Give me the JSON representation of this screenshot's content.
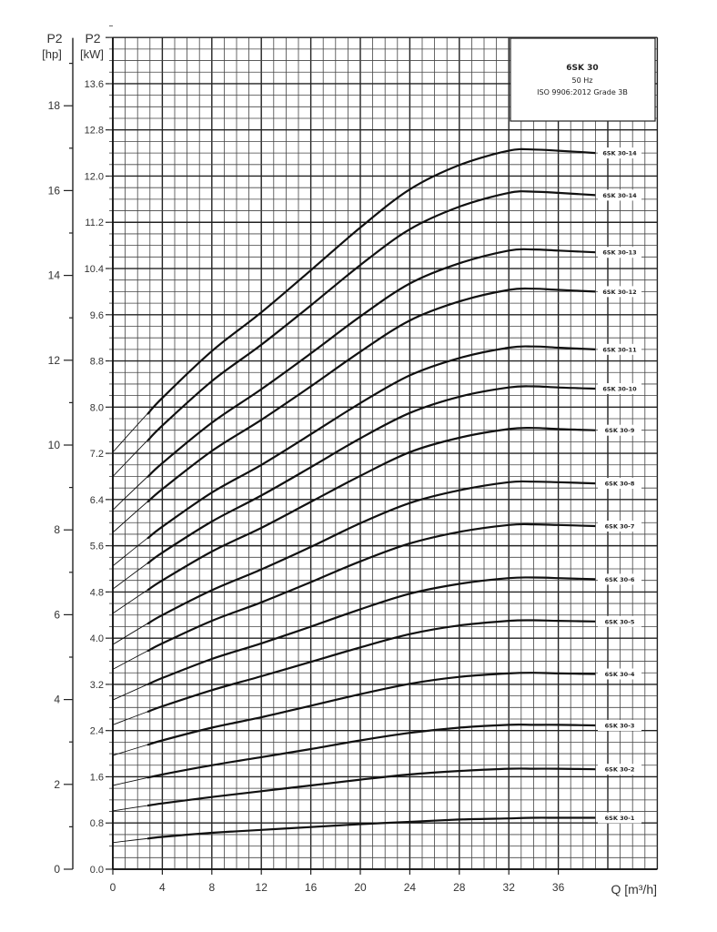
{
  "chart_data": {
    "type": "line",
    "title": "6SK 30",
    "subtitle": [
      "50 Hz",
      "ISO 9906:2012 Grade 3B"
    ],
    "xlabel": "Q [m³/h]",
    "ylabel_left": [
      "P2",
      "[hp]"
    ],
    "ylabel_right": [
      "P2",
      "[kW]"
    ],
    "xlim": [
      0,
      44
    ],
    "ylim": [
      0,
      14.4
    ],
    "hp_lim": [
      0,
      19.6
    ],
    "grid": true,
    "x_ticks": [
      "0",
      "4",
      "8",
      "12",
      "16",
      "20",
      "24",
      "28",
      "32",
      "36"
    ],
    "kw_ticks": [
      "0.0",
      "0.8",
      "1.6",
      "2.4",
      "3.2",
      "4.0",
      "4.8",
      "5.6",
      "6.4",
      "7.2",
      "8.0",
      "8.8",
      "9.6",
      "10.4",
      "11.2",
      "12.0",
      "12.8",
      "13.6"
    ],
    "hp_ticks": [
      "0",
      "2",
      "4",
      "6",
      "8",
      "10",
      "12",
      "14",
      "16",
      "18"
    ],
    "x": [
      0,
      4,
      8,
      12,
      16,
      20,
      24,
      28,
      32,
      34,
      36,
      39
    ],
    "series": [
      {
        "name": "6SK 30-1",
        "values": [
          0.46,
          0.56,
          0.63,
          0.68,
          0.73,
          0.78,
          0.82,
          0.86,
          0.88,
          0.89,
          0.89,
          0.89
        ]
      },
      {
        "name": "6SK 30-2",
        "values": [
          1.01,
          1.14,
          1.25,
          1.35,
          1.45,
          1.55,
          1.64,
          1.7,
          1.74,
          1.74,
          1.74,
          1.73
        ]
      },
      {
        "name": "6SK 30-3",
        "values": [
          1.45,
          1.64,
          1.8,
          1.94,
          2.08,
          2.23,
          2.36,
          2.45,
          2.5,
          2.5,
          2.5,
          2.49
        ]
      },
      {
        "name": "6SK 30-4",
        "values": [
          1.97,
          2.23,
          2.45,
          2.63,
          2.83,
          3.03,
          3.21,
          3.33,
          3.39,
          3.4,
          3.39,
          3.38
        ]
      },
      {
        "name": "6SK 30-5",
        "values": [
          2.5,
          2.82,
          3.1,
          3.34,
          3.59,
          3.84,
          4.07,
          4.22,
          4.3,
          4.31,
          4.3,
          4.29
        ]
      },
      {
        "name": "6SK 30-6",
        "values": [
          2.93,
          3.31,
          3.64,
          3.91,
          4.2,
          4.5,
          4.77,
          4.94,
          5.04,
          5.05,
          5.04,
          5.02
        ]
      },
      {
        "name": "6SK 30-7",
        "values": [
          3.46,
          3.91,
          4.3,
          4.62,
          4.97,
          5.33,
          5.64,
          5.84,
          5.96,
          5.97,
          5.96,
          5.94
        ]
      },
      {
        "name": "6SK 30-8",
        "values": [
          3.89,
          4.4,
          4.83,
          5.19,
          5.58,
          5.99,
          6.34,
          6.56,
          6.7,
          6.71,
          6.7,
          6.68
        ]
      },
      {
        "name": "6SK 30-9",
        "values": [
          4.43,
          5.0,
          5.5,
          5.91,
          6.36,
          6.81,
          7.22,
          7.47,
          7.62,
          7.64,
          7.62,
          7.6
        ]
      },
      {
        "name": "6SK 30-10",
        "values": [
          4.85,
          5.48,
          6.02,
          6.47,
          6.96,
          7.46,
          7.9,
          8.18,
          8.34,
          8.36,
          8.34,
          8.32
        ]
      },
      {
        "name": "6SK 30-11",
        "values": [
          5.25,
          5.93,
          6.52,
          7.0,
          7.53,
          8.07,
          8.55,
          8.85,
          9.03,
          9.05,
          9.03,
          9.0
        ]
      },
      {
        "name": "6SK 30-12",
        "values": [
          5.83,
          6.58,
          7.24,
          7.78,
          8.36,
          8.96,
          9.5,
          9.83,
          10.03,
          10.05,
          10.03,
          10.0
        ]
      },
      {
        "name": "6SK 30-13",
        "values": [
          6.22,
          7.03,
          7.73,
          8.31,
          8.93,
          9.57,
          10.14,
          10.49,
          10.71,
          10.73,
          10.71,
          10.68
        ]
      },
      {
        "name": "6SK 30-14",
        "values": [
          6.8,
          7.68,
          8.45,
          9.08,
          9.76,
          10.46,
          11.08,
          11.47,
          11.71,
          11.73,
          11.71,
          11.67
        ]
      },
      {
        "name": "6SK 30-14",
        "values": [
          7.22,
          8.16,
          8.97,
          9.64,
          10.37,
          11.11,
          11.77,
          12.19,
          12.44,
          12.46,
          12.44,
          12.4
        ]
      }
    ]
  }
}
